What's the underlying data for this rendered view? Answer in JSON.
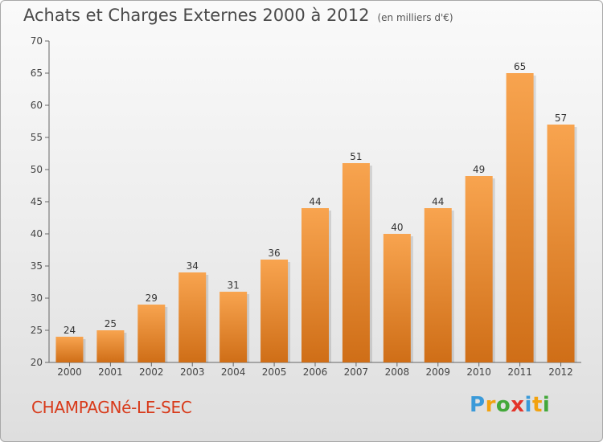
{
  "title": "Achats et Charges Externes 2000 à 2012",
  "subtitle": "(en milliers d'€)",
  "commune": "CHAMPAGNé-LE-SEC",
  "logo": {
    "text": "Proxiti",
    "letters": [
      {
        "ch": "P",
        "color": "#3a9ad9"
      },
      {
        "ch": "r",
        "color": "#f2a20f"
      },
      {
        "ch": "o",
        "color": "#43a83a"
      },
      {
        "ch": "x",
        "color": "#e3342a"
      },
      {
        "ch": "i",
        "color": "#3a9ad9"
      },
      {
        "ch": "t",
        "color": "#f2a20f"
      },
      {
        "ch": "i",
        "color": "#43a83a"
      }
    ]
  },
  "chart_data": {
    "type": "bar",
    "categories": [
      "2000",
      "2001",
      "2002",
      "2003",
      "2004",
      "2005",
      "2006",
      "2007",
      "2008",
      "2009",
      "2010",
      "2011",
      "2012"
    ],
    "values": [
      24,
      25,
      29,
      34,
      31,
      36,
      44,
      51,
      40,
      44,
      49,
      65,
      57
    ],
    "ylim": [
      20,
      70
    ],
    "yticks": [
      20,
      25,
      30,
      35,
      40,
      45,
      50,
      55,
      60,
      65,
      70
    ],
    "grid": false,
    "bar_color_light": "#f8a44f",
    "bar_color_dark": "#cf6e17"
  }
}
